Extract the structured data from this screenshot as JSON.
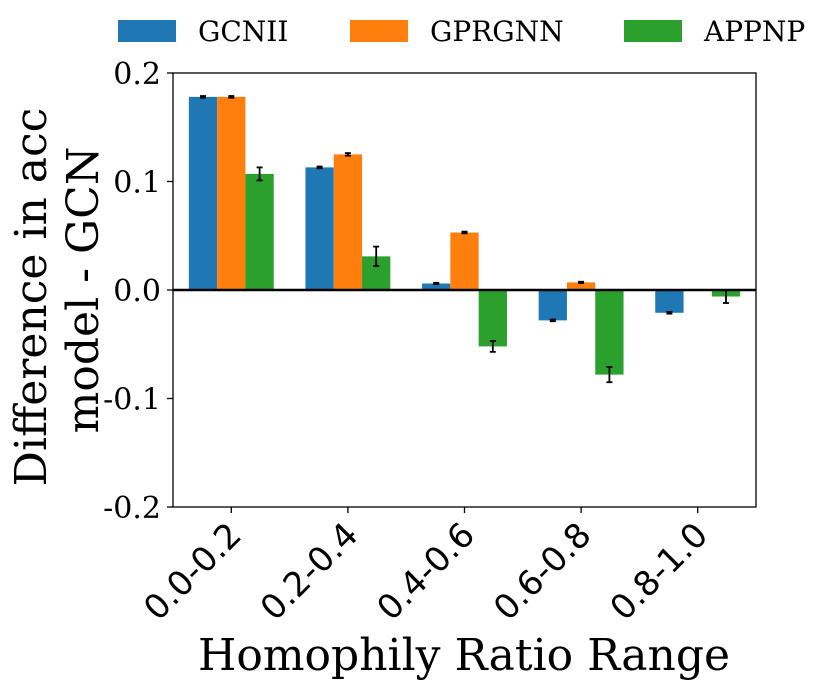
{
  "chart_data": {
    "type": "bar",
    "title": "",
    "xlabel": "Homophily Ratio Range",
    "ylabel": [
      "Difference in acc",
      "model - GCN"
    ],
    "categories": [
      "0.0-0.2",
      "0.2-0.4",
      "0.4-0.6",
      "0.6-0.8",
      "0.8-1.0"
    ],
    "series": [
      {
        "name": "GCNII",
        "color": "#1f77b4",
        "values": [
          0.178,
          0.113,
          0.006,
          -0.028,
          -0.021
        ],
        "errors": [
          0.0008,
          0.0008,
          0.0006,
          0.0008,
          0.0008
        ]
      },
      {
        "name": "GPRGNN",
        "color": "#ff7f0e",
        "values": [
          0.178,
          0.125,
          0.053,
          0.007,
          null
        ],
        "errors": [
          0.0008,
          0.0012,
          0.0008,
          0.0006,
          null
        ]
      },
      {
        "name": "APPNP",
        "color": "#2ca02c",
        "values": [
          0.107,
          0.031,
          -0.052,
          -0.078,
          -0.006
        ],
        "errors": [
          0.006,
          0.009,
          0.005,
          0.007,
          0.006
        ]
      }
    ],
    "ylim": [
      -0.2,
      0.2
    ],
    "yticks": [
      -0.2,
      -0.1,
      0.0,
      0.1,
      0.2
    ],
    "ytick_labels": [
      "-0.2",
      "-0.1",
      "0.0",
      "0.1",
      "0.2"
    ],
    "zero_line": true,
    "grid": false,
    "legend_position": "top, above plot"
  }
}
